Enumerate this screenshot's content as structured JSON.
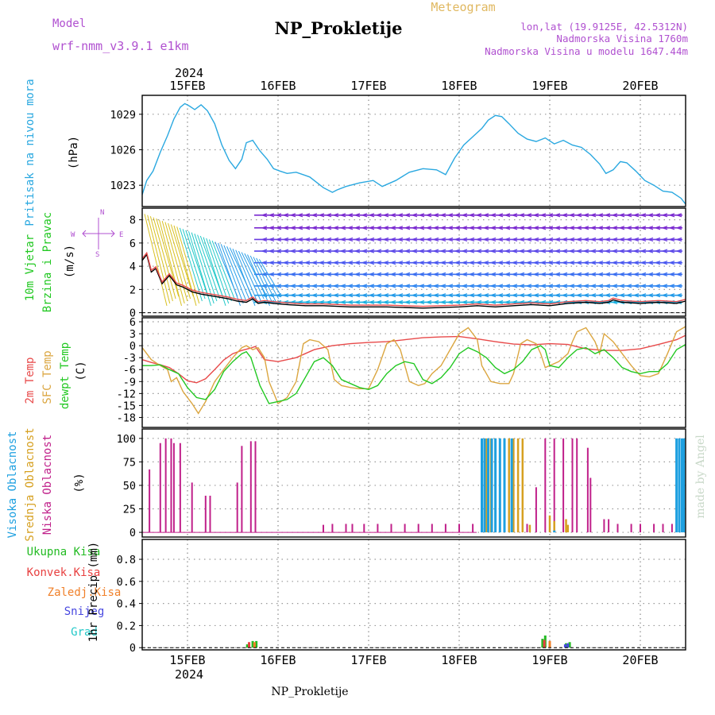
{
  "header": {
    "model_label": "Model",
    "model_name": "wrf-nmm_v3.9.1 e1km",
    "title": "NP_Prokletije",
    "subtitle": "Meteogram",
    "lonlat": "lon,lat (19.9125E, 42.5312N)",
    "altitude": "Nadmorska Visina 1760m",
    "model_altitude": "Nadmorska Visina u modelu 1647.44m",
    "footer": "NP_Prokletije",
    "credit": "made by Angel"
  },
  "time_axis": {
    "year": "2024",
    "dates": [
      "15FEB",
      "16FEB",
      "17FEB",
      "18FEB",
      "19FEB",
      "20FEB"
    ],
    "start_day": 14.5,
    "end_day": 20.5
  },
  "colors": {
    "pressure": "#2aa8e0",
    "temp2m": "#e84a4a",
    "sfc_temp": "#dba640",
    "dewpoint": "#22c822",
    "high_cloud": "#1ea0e0",
    "mid_cloud": "#d6a020",
    "low_cloud": "#c0208a",
    "precip_total": "#22bb22",
    "precip_conv": "#e84040",
    "precip_frozen": "#f0802a",
    "precip_snow": "#4848e0",
    "precip_graupel": "#22c8c8",
    "model_text": "#b050d0"
  },
  "chart_data": [
    {
      "type": "line",
      "panel": "pressure",
      "ylabel": "(hPa)",
      "side_label": "Pritisak na nivou mora",
      "yticks": [
        1023,
        1026,
        1029
      ],
      "ylim": [
        1021.2,
        1030.6
      ],
      "series": [
        {
          "x": [
            14.5,
            14.55,
            14.62,
            14.7,
            14.78,
            14.85,
            14.92,
            14.97,
            15.02,
            15.08,
            15.15,
            15.22,
            15.3,
            15.38,
            15.46,
            15.53,
            15.6,
            15.65,
            15.72,
            15.8,
            15.88,
            15.95,
            16.02,
            16.1,
            16.2,
            16.35,
            16.5,
            16.6,
            16.65,
            16.75,
            16.9,
            17.05,
            17.15,
            17.3,
            17.45,
            17.6,
            17.75,
            17.85,
            17.95,
            18.05,
            18.15,
            18.25,
            18.32,
            18.4,
            18.47,
            18.55,
            18.65,
            18.75,
            18.85,
            18.95,
            19.05,
            19.15,
            19.25,
            19.35,
            19.45,
            19.55,
            19.62,
            19.7,
            19.78,
            19.85,
            19.95,
            20.05,
            20.15,
            20.25,
            20.35,
            20.45,
            20.5
          ],
          "values": [
            1022.2,
            1023.4,
            1024.2,
            1025.8,
            1027.2,
            1028.6,
            1029.6,
            1029.9,
            1029.7,
            1029.4,
            1029.8,
            1029.3,
            1028.2,
            1026.4,
            1025.1,
            1024.4,
            1025.2,
            1026.6,
            1026.8,
            1025.9,
            1025.2,
            1024.4,
            1024.2,
            1024.0,
            1024.1,
            1023.7,
            1022.8,
            1022.4,
            1022.6,
            1022.9,
            1023.2,
            1023.4,
            1022.9,
            1023.4,
            1024.1,
            1024.4,
            1024.3,
            1023.9,
            1025.3,
            1026.4,
            1027.1,
            1027.8,
            1028.5,
            1028.9,
            1028.8,
            1028.2,
            1027.4,
            1026.9,
            1026.7,
            1027.0,
            1026.5,
            1026.8,
            1026.4,
            1026.2,
            1025.6,
            1024.8,
            1024.0,
            1024.3,
            1025.0,
            1024.9,
            1024.2,
            1023.4,
            1023.0,
            1022.5,
            1022.4,
            1021.9,
            1021.4
          ]
        }
      ]
    },
    {
      "type": "line",
      "panel": "wind",
      "ylabel": "(m/s)",
      "side_label_1": "10m Vjetar",
      "side_label_2": "Brzina i Pravac",
      "compass": [
        "W",
        "N",
        "E",
        "S"
      ],
      "yticks": [
        0,
        2,
        4,
        6,
        8
      ],
      "ylim": [
        -0.3,
        9.0
      ],
      "series": [
        {
          "name": "wind speed",
          "x": [
            14.5,
            14.55,
            14.6,
            14.65,
            14.72,
            14.8,
            14.88,
            14.95,
            15.05,
            15.15,
            15.3,
            15.45,
            15.55,
            15.65,
            15.72,
            15.78,
            15.85,
            15.95,
            16.1,
            16.3,
            16.5,
            16.8,
            17.2,
            17.6,
            18.0,
            18.2,
            18.4,
            18.6,
            18.8,
            19.0,
            19.2,
            19.4,
            19.55,
            19.65,
            19.7,
            19.8,
            20.0,
            20.2,
            20.4,
            20.5
          ],
          "values": [
            4.5,
            5.0,
            3.5,
            3.8,
            2.5,
            3.2,
            2.4,
            2.2,
            1.8,
            1.6,
            1.4,
            1.2,
            1.0,
            0.9,
            1.2,
            0.8,
            0.9,
            0.8,
            0.7,
            0.6,
            0.6,
            0.5,
            0.5,
            0.4,
            0.5,
            0.6,
            0.5,
            0.6,
            0.7,
            0.6,
            0.8,
            0.9,
            0.8,
            0.9,
            1.1,
            0.9,
            0.8,
            0.9,
            0.8,
            1.0
          ]
        }
      ]
    },
    {
      "type": "line",
      "panel": "temperature",
      "ylabel": "(C)",
      "side_label_1": "2m Temp",
      "side_label_2": "SFC Temp",
      "side_label_3": "dewpt Temp",
      "yticks": [
        -18,
        -15,
        -12,
        -9,
        -6,
        -3,
        0,
        3,
        6
      ],
      "ylim": [
        -20.5,
        7.0
      ],
      "series": [
        {
          "name": "2m Temp",
          "x": [
            14.5,
            14.6,
            14.7,
            14.8,
            14.9,
            15.0,
            15.1,
            15.2,
            15.3,
            15.4,
            15.5,
            15.6,
            15.7,
            15.75,
            15.85,
            16.0,
            16.2,
            16.4,
            16.6,
            16.8,
            17.0,
            17.2,
            17.4,
            17.6,
            17.8,
            18.0,
            18.2,
            18.4,
            18.6,
            18.8,
            19.0,
            19.2,
            19.4,
            19.6,
            19.8,
            20.0,
            20.2,
            20.4,
            20.5
          ],
          "values": [
            -3.5,
            -4.2,
            -4.8,
            -5.5,
            -7.0,
            -8.8,
            -9.3,
            -8.3,
            -6.0,
            -3.6,
            -2.0,
            -1.2,
            -0.6,
            -0.2,
            -3.5,
            -4.0,
            -3.0,
            -1.0,
            0.0,
            0.5,
            0.8,
            1.0,
            1.5,
            2.0,
            2.2,
            2.3,
            1.7,
            1.0,
            0.4,
            0.2,
            0.5,
            0.3,
            -0.8,
            -1.2,
            -1.2,
            -0.8,
            0.3,
            1.5,
            2.6
          ]
        },
        {
          "name": "SFC Temp",
          "x": [
            14.5,
            14.6,
            14.7,
            14.78,
            14.82,
            14.88,
            14.95,
            15.0,
            15.05,
            15.12,
            15.2,
            15.3,
            15.4,
            15.5,
            15.6,
            15.65,
            15.72,
            15.78,
            15.85,
            15.9,
            16.0,
            16.1,
            16.2,
            16.28,
            16.35,
            16.45,
            16.55,
            16.62,
            16.7,
            16.8,
            16.9,
            17.0,
            17.1,
            17.2,
            17.28,
            17.35,
            17.45,
            17.55,
            17.62,
            17.7,
            17.8,
            17.9,
            18.0,
            18.1,
            18.2,
            18.25,
            18.35,
            18.45,
            18.55,
            18.6,
            18.68,
            18.75,
            18.85,
            18.9,
            18.95,
            19.1,
            19.2,
            19.25,
            19.3,
            19.4,
            19.5,
            19.55,
            19.6,
            19.7,
            19.8,
            19.9,
            20.0,
            20.1,
            20.2,
            20.3,
            20.4,
            20.5
          ],
          "values": [
            -0.5,
            -3.5,
            -5.0,
            -6.0,
            -9.0,
            -8.0,
            -11.5,
            -13.0,
            -14.5,
            -17.0,
            -14.0,
            -9.0,
            -6.0,
            -3.0,
            -0.5,
            0.0,
            -1.0,
            -0.5,
            -3.0,
            -9.0,
            -14.5,
            -13.0,
            -9.0,
            0.5,
            1.5,
            1.0,
            -1.0,
            -8.5,
            -10.0,
            -10.5,
            -10.8,
            -10.8,
            -6.0,
            0.5,
            1.5,
            -1.0,
            -9.0,
            -10.0,
            -9.5,
            -7.0,
            -5.0,
            -1.0,
            3.0,
            4.5,
            1.5,
            -5.0,
            -9.0,
            -9.5,
            -9.5,
            -7.0,
            0.5,
            1.5,
            0.5,
            -2.0,
            -5.5,
            -4.0,
            -2.0,
            1.0,
            3.5,
            4.5,
            1.0,
            -2.0,
            3.0,
            1.0,
            -2.0,
            -5.0,
            -7.5,
            -7.8,
            -7.0,
            -2.0,
            3.5,
            4.8
          ]
        },
        {
          "name": "dewpt Temp",
          "x": [
            14.5,
            14.6,
            14.7,
            14.8,
            14.9,
            15.0,
            15.1,
            15.2,
            15.3,
            15.4,
            15.5,
            15.6,
            15.65,
            15.7,
            15.8,
            15.9,
            16.0,
            16.1,
            16.2,
            16.3,
            16.4,
            16.5,
            16.6,
            16.7,
            16.8,
            16.9,
            17.0,
            17.1,
            17.2,
            17.3,
            17.4,
            17.5,
            17.6,
            17.7,
            17.8,
            17.9,
            18.0,
            18.1,
            18.2,
            18.3,
            18.4,
            18.5,
            18.6,
            18.7,
            18.8,
            18.9,
            18.95,
            19.0,
            19.1,
            19.2,
            19.3,
            19.4,
            19.5,
            19.6,
            19.7,
            19.8,
            19.9,
            20.0,
            20.1,
            20.2,
            20.3,
            20.4,
            20.5
          ],
          "values": [
            -5.0,
            -5.0,
            -4.8,
            -6.0,
            -7.0,
            -10.5,
            -13.0,
            -13.5,
            -11.0,
            -6.5,
            -4.0,
            -2.0,
            -1.5,
            -3.0,
            -10.0,
            -14.5,
            -14.0,
            -13.5,
            -12.0,
            -8.0,
            -4.0,
            -3.0,
            -5.0,
            -8.5,
            -9.5,
            -10.5,
            -11.0,
            -10.0,
            -7.0,
            -5.0,
            -4.0,
            -4.5,
            -8.5,
            -9.5,
            -8.0,
            -5.5,
            -2.0,
            -0.5,
            -1.5,
            -3.0,
            -5.5,
            -7.0,
            -6.0,
            -4.0,
            -1.0,
            0.0,
            -1.0,
            -5.0,
            -5.5,
            -3.0,
            -1.0,
            -0.5,
            -2.0,
            -1.0,
            -3.0,
            -5.5,
            -6.5,
            -7.0,
            -6.5,
            -6.5,
            -4.5,
            -1.0,
            0.3
          ]
        }
      ]
    },
    {
      "type": "bar",
      "panel": "cloud",
      "ylabel": "(%)",
      "side_label_1": "Visoka Oblacnost",
      "side_label_2": "Srednja Oblacnost",
      "side_label_3": "Niska Oblacnost",
      "yticks": [
        0,
        25,
        50,
        75,
        100
      ],
      "ylim": [
        -5,
        110
      ],
      "series": [
        {
          "name": "Niska Oblacnost",
          "x": [
            14.58,
            14.7,
            14.76,
            14.82,
            14.85,
            14.92,
            15.05,
            15.2,
            15.25,
            15.55,
            15.6,
            15.7,
            15.75,
            16.5,
            16.6,
            16.75,
            16.82,
            16.95,
            17.1,
            17.25,
            17.4,
            17.55,
            17.7,
            17.85,
            18.0,
            18.15,
            18.25,
            18.35,
            18.5,
            18.65,
            18.75,
            18.85,
            18.95,
            19.05,
            19.15,
            19.25,
            19.3,
            19.42,
            19.45,
            19.6,
            19.65,
            19.75,
            19.9,
            20.0,
            20.15,
            20.25,
            20.35
          ],
          "values": [
            67,
            95,
            100,
            100,
            95,
            95,
            53,
            39,
            39,
            53,
            92,
            97,
            97,
            8,
            9,
            9,
            9,
            9,
            9,
            9,
            9,
            9,
            9,
            9,
            9,
            9,
            9,
            9,
            9,
            9,
            9,
            48,
            100,
            100,
            100,
            100,
            100,
            90,
            58,
            14,
            14,
            9,
            9,
            9,
            9,
            9,
            9
          ]
        },
        {
          "name": "Srednja Oblacnost",
          "x": [
            18.28,
            18.3,
            18.35,
            18.4,
            18.45,
            18.5,
            18.55,
            18.6,
            18.65,
            18.7,
            18.78,
            19.0,
            19.05,
            19.18,
            19.2
          ],
          "values": [
            38,
            100,
            100,
            100,
            100,
            100,
            100,
            100,
            100,
            100,
            8,
            18,
            12,
            14,
            8
          ]
        },
        {
          "name": "Visoka Oblacnost",
          "x": [
            18.25,
            18.28,
            18.32,
            18.36,
            18.4,
            18.45,
            18.5,
            18.58,
            19.05,
            20.4,
            20.43,
            20.46,
            20.48
          ],
          "values": [
            100,
            100,
            100,
            100,
            100,
            100,
            100,
            100,
            2,
            100,
            100,
            100,
            100
          ]
        }
      ]
    },
    {
      "type": "bar",
      "panel": "precip",
      "ylabel": "1hr Precip (mm)",
      "legend": [
        "Ukupna Kisa",
        "Konvek.Kisa",
        "Zaledj.Kisa",
        "Snijeg",
        "Grad"
      ],
      "yticks": [
        0,
        0.2,
        0.4,
        0.6,
        0.8
      ],
      "ylim": [
        -0.02,
        0.98
      ],
      "series": [
        {
          "name": "Ukupna Kisa",
          "x": [
            15.66,
            15.72,
            15.76,
            18.92,
            18.95,
            19.18,
            19.22
          ],
          "values": [
            0.03,
            0.06,
            0.06,
            0.08,
            0.11,
            0.04,
            0.05
          ]
        },
        {
          "name": "Konvek.Kisa",
          "x": [
            15.68,
            18.94
          ],
          "values": [
            0.05,
            0.07
          ]
        },
        {
          "name": "Zaledj.Kisa",
          "x": [
            15.74,
            19.0
          ],
          "values": [
            0.05,
            0.06
          ]
        },
        {
          "name": "Snijeg",
          "x": [
            19.17,
            19.2
          ],
          "values": [
            0.03,
            0.04
          ]
        }
      ]
    }
  ]
}
